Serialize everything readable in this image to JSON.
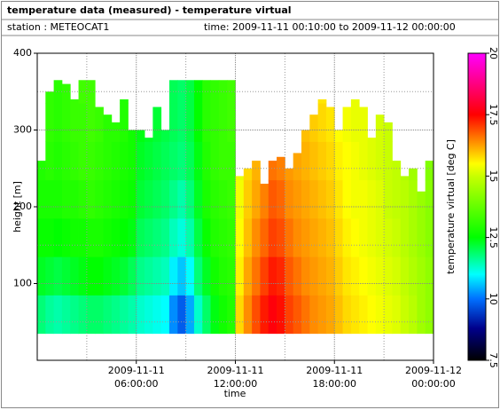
{
  "chart_data": {
    "type": "heatmap",
    "title": "temperature data (measured) - temperature virtual",
    "station": "station : METEOCAT1",
    "time_range": "time: 2009-11-11 00:10:00 to 2009-11-12 00:00:00",
    "xlabel": "time",
    "ylabel": "height [m]",
    "colorbar_label": "temperature virtual [deg C]",
    "xlim": [
      0,
      24
    ],
    "ylim": [
      0,
      400
    ],
    "clim": [
      7.5,
      20
    ],
    "xticks": [
      {
        "value": 6,
        "label": "2009-11-11 06:00:00"
      },
      {
        "value": 12,
        "label": "2009-11-11 12:00:00"
      },
      {
        "value": 18,
        "label": "2009-11-11 18:00:00"
      },
      {
        "value": 24,
        "label": "2009-11-12 00:00:00"
      }
    ],
    "xminorticks": [
      3,
      9,
      15,
      21
    ],
    "yticks": [
      100,
      200,
      300,
      400
    ],
    "yminorticks": [
      50,
      150,
      250,
      350
    ],
    "cticks": [
      7.5,
      10,
      12.5,
      15,
      17.5,
      20
    ],
    "grid": true,
    "colormap": [
      {
        "value": 7.5,
        "color": "#000000"
      },
      {
        "value": 8.8,
        "color": "#00008b"
      },
      {
        "value": 10,
        "color": "#0070ff"
      },
      {
        "value": 11,
        "color": "#00ffff"
      },
      {
        "value": 12.5,
        "color": "#00ff00"
      },
      {
        "value": 15,
        "color": "#c8ff00"
      },
      {
        "value": 15.5,
        "color": "#ffff00"
      },
      {
        "value": 16.3,
        "color": "#ff9900"
      },
      {
        "value": 17.5,
        "color": "#ff0000"
      },
      {
        "value": 20,
        "color": "#ff00ff"
      }
    ],
    "x": [
      0,
      0.5,
      1,
      1.5,
      2,
      2.5,
      3,
      3.5,
      4,
      4.5,
      5,
      5.5,
      6,
      6.5,
      7,
      7.5,
      8,
      8.5,
      9,
      9.5,
      10,
      10.5,
      11,
      11.5,
      12,
      12.5,
      13,
      13.5,
      14,
      14.5,
      15,
      15.5,
      16,
      16.5,
      17,
      17.5,
      18,
      18.5,
      19,
      19.5,
      20,
      20.5,
      21,
      21.5,
      22,
      22.5,
      23,
      23.5
    ],
    "yedges": [
      35,
      85,
      135,
      185,
      235,
      285,
      335,
      365
    ],
    "tops": [
      260,
      350,
      365,
      360,
      340,
      365,
      365,
      330,
      320,
      310,
      340,
      300,
      300,
      290,
      330,
      300,
      365,
      365,
      365,
      365,
      365,
      365,
      365,
      365,
      240,
      250,
      260,
      230,
      260,
      265,
      250,
      270,
      300,
      320,
      340,
      330,
      300,
      330,
      340,
      330,
      290,
      320,
      310,
      260,
      240,
      250,
      220,
      260
    ],
    "z": [
      [
        11.8,
        12.3,
        12.6,
        12.8,
        12.9,
        null,
        null
      ],
      [
        11.6,
        12.2,
        12.6,
        12.8,
        13.0,
        13.1,
        13.1
      ],
      [
        11.5,
        12.1,
        12.5,
        12.8,
        12.9,
        13.0,
        13.0
      ],
      [
        11.6,
        12.2,
        12.6,
        12.9,
        13.0,
        13.1,
        13.1
      ],
      [
        11.7,
        12.3,
        12.7,
        12.9,
        13.1,
        13.2,
        13.2
      ],
      [
        11.8,
        12.4,
        12.7,
        13.0,
        13.2,
        13.2,
        13.3
      ],
      [
        11.9,
        12.5,
        12.8,
        13.1,
        13.2,
        13.3,
        13.3
      ],
      [
        11.9,
        12.5,
        12.8,
        13.0,
        13.1,
        13.2,
        null
      ],
      [
        11.8,
        12.4,
        12.7,
        12.9,
        13.0,
        13.0,
        null
      ],
      [
        11.7,
        12.3,
        12.6,
        12.8,
        12.9,
        13.0,
        null
      ],
      [
        11.6,
        12.2,
        12.5,
        12.7,
        12.8,
        12.9,
        12.9
      ],
      [
        11.5,
        12.0,
        12.4,
        12.6,
        12.7,
        12.7,
        null
      ],
      [
        11.3,
        11.7,
        12.0,
        12.2,
        12.3,
        12.4,
        null
      ],
      [
        11.2,
        11.6,
        11.9,
        12.1,
        12.2,
        12.3,
        null
      ],
      [
        11.1,
        11.5,
        11.8,
        12.0,
        12.1,
        12.2,
        null
      ],
      [
        11.0,
        11.4,
        11.7,
        11.9,
        12.0,
        12.1,
        null
      ],
      [
        10.2,
        10.9,
        11.4,
        11.7,
        11.9,
        12.0,
        12.0
      ],
      [
        9.8,
        10.6,
        11.2,
        11.5,
        11.8,
        11.9,
        11.9
      ],
      [
        10.4,
        11.0,
        11.5,
        11.8,
        12.0,
        12.1,
        12.1
      ],
      [
        11.3,
        11.8,
        12.1,
        12.3,
        12.4,
        12.5,
        12.5
      ],
      [
        11.9,
        12.3,
        12.6,
        12.8,
        12.9,
        13.0,
        13.0
      ],
      [
        12.4,
        12.7,
        12.9,
        13.0,
        13.1,
        13.1,
        13.1
      ],
      [
        12.7,
        12.9,
        13.0,
        13.1,
        13.2,
        13.2,
        13.2
      ],
      [
        12.9,
        13.0,
        13.1,
        13.2,
        13.2,
        13.3,
        13.3
      ],
      [
        15.8,
        15.6,
        15.5,
        15.4,
        15.3,
        null,
        null
      ],
      [
        16.4,
        16.2,
        16.0,
        15.9,
        15.8,
        null,
        null
      ],
      [
        16.9,
        16.6,
        16.4,
        16.2,
        16.1,
        null,
        null
      ],
      [
        17.3,
        17.0,
        16.7,
        16.5,
        null,
        null,
        null
      ],
      [
        17.6,
        17.3,
        17.0,
        16.8,
        16.6,
        null,
        null
      ],
      [
        17.4,
        17.2,
        16.9,
        16.7,
        16.5,
        null,
        null
      ],
      [
        17.0,
        16.8,
        16.6,
        16.4,
        16.3,
        null,
        null
      ],
      [
        16.8,
        16.6,
        16.4,
        16.3,
        16.2,
        null,
        null
      ],
      [
        16.6,
        16.4,
        16.3,
        16.2,
        16.1,
        16.0,
        null
      ],
      [
        16.4,
        16.3,
        16.2,
        16.1,
        16.0,
        15.9,
        null
      ],
      [
        16.3,
        16.2,
        16.1,
        16.0,
        15.9,
        15.8,
        15.7
      ],
      [
        16.2,
        16.1,
        16.0,
        15.9,
        15.8,
        15.7,
        null
      ],
      [
        16.0,
        15.9,
        15.8,
        15.7,
        15.6,
        15.5,
        null
      ],
      [
        15.8,
        15.7,
        15.6,
        15.5,
        15.5,
        15.4,
        null
      ],
      [
        15.7,
        15.6,
        15.5,
        15.4,
        15.4,
        15.3,
        15.3
      ],
      [
        15.6,
        15.5,
        15.4,
        15.4,
        15.3,
        15.3,
        null
      ],
      [
        15.5,
        15.4,
        15.3,
        15.3,
        15.2,
        15.2,
        null
      ],
      [
        15.4,
        15.3,
        15.2,
        15.2,
        15.1,
        15.1,
        null
      ],
      [
        15.3,
        15.2,
        15.1,
        15.0,
        15.0,
        15.0,
        null
      ],
      [
        15.2,
        15.1,
        15.0,
        14.9,
        14.9,
        null,
        null
      ],
      [
        15.0,
        14.9,
        14.8,
        14.8,
        14.7,
        null,
        null
      ],
      [
        14.8,
        14.7,
        14.6,
        14.6,
        14.5,
        null,
        null
      ],
      [
        14.5,
        14.5,
        14.4,
        14.4,
        null,
        null,
        null
      ],
      [
        14.3,
        14.3,
        14.2,
        14.2,
        14.1,
        null,
        null
      ]
    ]
  }
}
